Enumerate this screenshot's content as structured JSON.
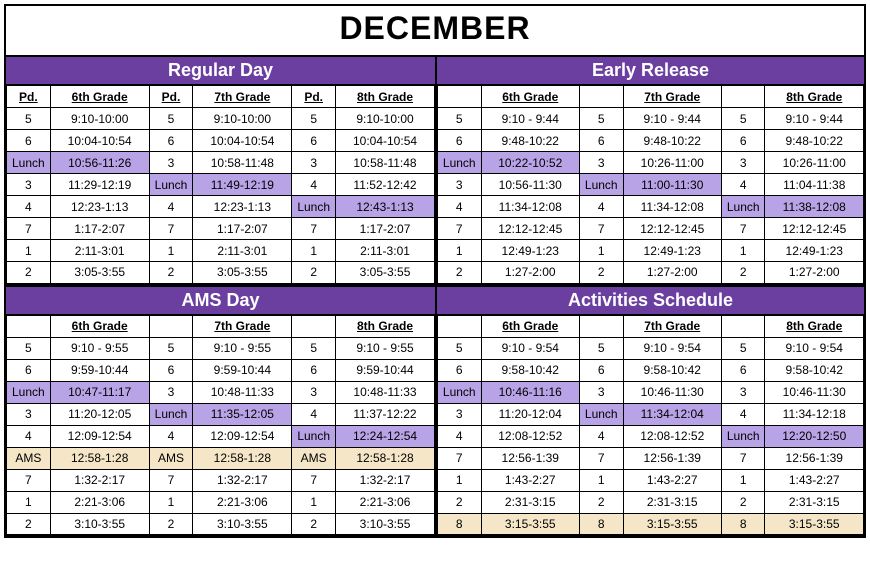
{
  "month": "DECEMBER",
  "colors": {
    "header_bg": "#6b3fa0",
    "header_fg": "#ffffff",
    "lunch_bg": "#b8a3e6",
    "ams_bg": "#f5e6c8"
  },
  "sections": [
    {
      "title": "Regular Day",
      "head": [
        "Pd.",
        "6th Grade",
        "Pd.",
        "7th Grade",
        "Pd.",
        "8th Grade"
      ],
      "rows": [
        [
          {
            "t": "5"
          },
          {
            "t": "9:10-10:00"
          },
          {
            "t": "5"
          },
          {
            "t": "9:10-10:00"
          },
          {
            "t": "5"
          },
          {
            "t": "9:10-10:00"
          }
        ],
        [
          {
            "t": "6"
          },
          {
            "t": "10:04-10:54"
          },
          {
            "t": "6"
          },
          {
            "t": "10:04-10:54"
          },
          {
            "t": "6"
          },
          {
            "t": "10:04-10:54"
          }
        ],
        [
          {
            "t": "Lunch",
            "h": "lunch"
          },
          {
            "t": "10:56-11:26",
            "h": "lunch"
          },
          {
            "t": "3"
          },
          {
            "t": "10:58-11:48"
          },
          {
            "t": "3"
          },
          {
            "t": "10:58-11:48"
          }
        ],
        [
          {
            "t": "3"
          },
          {
            "t": "11:29-12:19"
          },
          {
            "t": "Lunch",
            "h": "lunch"
          },
          {
            "t": "11:49-12:19",
            "h": "lunch"
          },
          {
            "t": "4"
          },
          {
            "t": "11:52-12:42"
          }
        ],
        [
          {
            "t": "4"
          },
          {
            "t": "12:23-1:13"
          },
          {
            "t": "4"
          },
          {
            "t": "12:23-1:13"
          },
          {
            "t": "Lunch",
            "h": "lunch"
          },
          {
            "t": "12:43-1:13",
            "h": "lunch"
          }
        ],
        [
          {
            "t": "7"
          },
          {
            "t": "1:17-2:07"
          },
          {
            "t": "7"
          },
          {
            "t": "1:17-2:07"
          },
          {
            "t": "7"
          },
          {
            "t": "1:17-2:07"
          }
        ],
        [
          {
            "t": "1"
          },
          {
            "t": "2:11-3:01"
          },
          {
            "t": "1"
          },
          {
            "t": "2:11-3:01"
          },
          {
            "t": "1"
          },
          {
            "t": "2:11-3:01"
          }
        ],
        [
          {
            "t": "2"
          },
          {
            "t": "3:05-3:55"
          },
          {
            "t": "2"
          },
          {
            "t": "3:05-3:55"
          },
          {
            "t": "2"
          },
          {
            "t": "3:05-3:55"
          }
        ]
      ]
    },
    {
      "title": "Early Release",
      "head": [
        "",
        "6th Grade",
        "",
        "7th Grade",
        "",
        "8th Grade"
      ],
      "rows": [
        [
          {
            "t": "5"
          },
          {
            "t": "9:10 - 9:44"
          },
          {
            "t": "5"
          },
          {
            "t": "9:10 - 9:44"
          },
          {
            "t": "5"
          },
          {
            "t": "9:10 - 9:44"
          }
        ],
        [
          {
            "t": "6"
          },
          {
            "t": "9:48-10:22"
          },
          {
            "t": "6"
          },
          {
            "t": "9:48-10:22"
          },
          {
            "t": "6"
          },
          {
            "t": "9:48-10:22"
          }
        ],
        [
          {
            "t": "Lunch",
            "h": "lunch"
          },
          {
            "t": "10:22-10:52",
            "h": "lunch"
          },
          {
            "t": "3"
          },
          {
            "t": "10:26-11:00"
          },
          {
            "t": "3"
          },
          {
            "t": "10:26-11:00"
          }
        ],
        [
          {
            "t": "3"
          },
          {
            "t": "10:56-11:30"
          },
          {
            "t": "Lunch",
            "h": "lunch"
          },
          {
            "t": "11:00-11:30",
            "h": "lunch"
          },
          {
            "t": "4"
          },
          {
            "t": "11:04-11:38"
          }
        ],
        [
          {
            "t": "4"
          },
          {
            "t": "11:34-12:08"
          },
          {
            "t": "4"
          },
          {
            "t": "11:34-12:08"
          },
          {
            "t": "Lunch",
            "h": "lunch"
          },
          {
            "t": "11:38-12:08",
            "h": "lunch"
          }
        ],
        [
          {
            "t": "7"
          },
          {
            "t": "12:12-12:45"
          },
          {
            "t": "7"
          },
          {
            "t": "12:12-12:45"
          },
          {
            "t": "7"
          },
          {
            "t": "12:12-12:45"
          }
        ],
        [
          {
            "t": "1"
          },
          {
            "t": "12:49-1:23"
          },
          {
            "t": "1"
          },
          {
            "t": "12:49-1:23"
          },
          {
            "t": "1"
          },
          {
            "t": "12:49-1:23"
          }
        ],
        [
          {
            "t": "2"
          },
          {
            "t": "1:27-2:00"
          },
          {
            "t": "2"
          },
          {
            "t": "1:27-2:00"
          },
          {
            "t": "2"
          },
          {
            "t": "1:27-2:00"
          }
        ]
      ]
    },
    {
      "title": "AMS Day",
      "head": [
        "",
        "6th Grade",
        "",
        "7th Grade",
        "",
        "8th Grade"
      ],
      "rows": [
        [
          {
            "t": "5"
          },
          {
            "t": "9:10 - 9:55"
          },
          {
            "t": "5"
          },
          {
            "t": "9:10 - 9:55"
          },
          {
            "t": "5"
          },
          {
            "t": "9:10 - 9:55"
          }
        ],
        [
          {
            "t": "6"
          },
          {
            "t": "9:59-10:44"
          },
          {
            "t": "6"
          },
          {
            "t": "9:59-10:44"
          },
          {
            "t": "6"
          },
          {
            "t": "9:59-10:44"
          }
        ],
        [
          {
            "t": "Lunch",
            "h": "lunch"
          },
          {
            "t": "10:47-11:17",
            "h": "lunch"
          },
          {
            "t": "3"
          },
          {
            "t": "10:48-11:33"
          },
          {
            "t": "3"
          },
          {
            "t": "10:48-11:33"
          }
        ],
        [
          {
            "t": "3"
          },
          {
            "t": "11:20-12:05"
          },
          {
            "t": "Lunch",
            "h": "lunch"
          },
          {
            "t": "11:35-12:05",
            "h": "lunch"
          },
          {
            "t": "4"
          },
          {
            "t": "11:37-12:22"
          }
        ],
        [
          {
            "t": "4"
          },
          {
            "t": "12:09-12:54"
          },
          {
            "t": "4"
          },
          {
            "t": "12:09-12:54"
          },
          {
            "t": "Lunch",
            "h": "lunch"
          },
          {
            "t": "12:24-12:54",
            "h": "lunch"
          }
        ],
        [
          {
            "t": "AMS",
            "h": "ams"
          },
          {
            "t": "12:58-1:28",
            "h": "ams"
          },
          {
            "t": "AMS",
            "h": "ams"
          },
          {
            "t": "12:58-1:28",
            "h": "ams"
          },
          {
            "t": "AMS",
            "h": "ams"
          },
          {
            "t": "12:58-1:28",
            "h": "ams"
          }
        ],
        [
          {
            "t": "7"
          },
          {
            "t": "1:32-2:17"
          },
          {
            "t": "7"
          },
          {
            "t": "1:32-2:17"
          },
          {
            "t": "7"
          },
          {
            "t": "1:32-2:17"
          }
        ],
        [
          {
            "t": "1"
          },
          {
            "t": "2:21-3:06"
          },
          {
            "t": "1"
          },
          {
            "t": "2:21-3:06"
          },
          {
            "t": "1"
          },
          {
            "t": "2:21-3:06"
          }
        ],
        [
          {
            "t": "2"
          },
          {
            "t": "3:10-3:55"
          },
          {
            "t": "2"
          },
          {
            "t": "3:10-3:55"
          },
          {
            "t": "2"
          },
          {
            "t": "3:10-3:55"
          }
        ]
      ]
    },
    {
      "title": "Activities Schedule",
      "head": [
        "",
        "6th Grade",
        "",
        "7th Grade",
        "",
        "8th Grade"
      ],
      "rows": [
        [
          {
            "t": "5"
          },
          {
            "t": "9:10 - 9:54"
          },
          {
            "t": "5"
          },
          {
            "t": "9:10 - 9:54"
          },
          {
            "t": "5"
          },
          {
            "t": "9:10 - 9:54"
          }
        ],
        [
          {
            "t": "6"
          },
          {
            "t": "9:58-10:42"
          },
          {
            "t": "6"
          },
          {
            "t": "9:58-10:42"
          },
          {
            "t": "6"
          },
          {
            "t": "9:58-10:42"
          }
        ],
        [
          {
            "t": "Lunch",
            "h": "lunch"
          },
          {
            "t": "10:46-11:16",
            "h": "lunch"
          },
          {
            "t": "3"
          },
          {
            "t": "10:46-11:30"
          },
          {
            "t": "3"
          },
          {
            "t": "10:46-11:30"
          }
        ],
        [
          {
            "t": "3"
          },
          {
            "t": "11:20-12:04"
          },
          {
            "t": "Lunch",
            "h": "lunch"
          },
          {
            "t": "11:34-12:04",
            "h": "lunch"
          },
          {
            "t": "4"
          },
          {
            "t": "11:34-12:18"
          }
        ],
        [
          {
            "t": "4"
          },
          {
            "t": "12:08-12:52"
          },
          {
            "t": "4"
          },
          {
            "t": "12:08-12:52"
          },
          {
            "t": "Lunch",
            "h": "lunch"
          },
          {
            "t": "12:20-12:50",
            "h": "lunch"
          }
        ],
        [
          {
            "t": "7"
          },
          {
            "t": "12:56-1:39"
          },
          {
            "t": "7"
          },
          {
            "t": "12:56-1:39"
          },
          {
            "t": "7"
          },
          {
            "t": "12:56-1:39"
          }
        ],
        [
          {
            "t": "1"
          },
          {
            "t": "1:43-2:27"
          },
          {
            "t": "1"
          },
          {
            "t": "1:43-2:27"
          },
          {
            "t": "1"
          },
          {
            "t": "1:43-2:27"
          }
        ],
        [
          {
            "t": "2"
          },
          {
            "t": "2:31-3:15"
          },
          {
            "t": "2"
          },
          {
            "t": "2:31-3:15"
          },
          {
            "t": "2"
          },
          {
            "t": "2:31-3:15"
          }
        ],
        [
          {
            "t": "8",
            "h": "ams"
          },
          {
            "t": "3:15-3:55",
            "h": "ams"
          },
          {
            "t": "8",
            "h": "ams"
          },
          {
            "t": "3:15-3:55",
            "h": "ams"
          },
          {
            "t": "8",
            "h": "ams"
          },
          {
            "t": "3:15-3:55",
            "h": "ams"
          }
        ]
      ]
    }
  ]
}
